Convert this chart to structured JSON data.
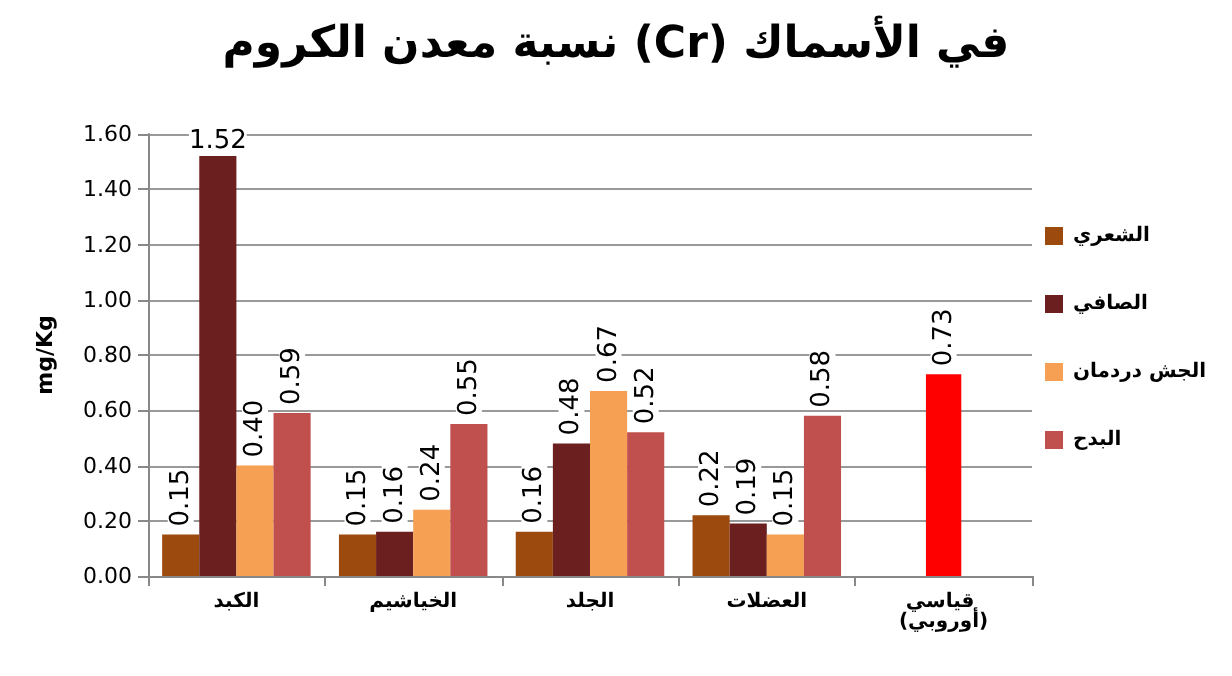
{
  "chart_data": {
    "type": "bar",
    "title": "نسبة معدن الكروم (Cr) في الأسماك",
    "ylabel": "mg/Kg",
    "categories": [
      "الكبد",
      "الخياشيم",
      "الجلد",
      "العضلات",
      "قياسي (أوروبي)"
    ],
    "series": [
      {
        "name": "الشعري",
        "color": "#9c4a0e",
        "values": [
          0.15,
          0.15,
          0.16,
          0.22,
          null
        ],
        "value_labels": [
          "0.15",
          "0.15",
          "0.16",
          "0.22",
          null
        ]
      },
      {
        "name": "الصافي",
        "color": "#6b1f1f",
        "values": [
          1.52,
          0.16,
          0.48,
          0.19,
          null
        ],
        "value_labels": [
          "1.52",
          "0.16",
          "0.48",
          "0.19",
          null
        ]
      },
      {
        "name": "الجش دردمان",
        "color": "#f5a052",
        "values": [
          0.4,
          0.24,
          0.67,
          0.15,
          null
        ],
        "value_labels": [
          "0.40",
          "0.24",
          "0.67",
          "0.15",
          null
        ]
      },
      {
        "name": "البدح",
        "color": "#c0504d",
        "values": [
          0.59,
          0.55,
          0.52,
          0.58,
          null
        ],
        "value_labels": [
          "0.59",
          "0.55",
          "0.52",
          "0.58",
          null
        ]
      },
      {
        "type": "bar",
        "color": "#ff0000",
        "values": [
          null,
          null,
          null,
          null,
          0.73
        ],
        "value_labels": [
          null,
          null,
          null,
          null,
          "0.73"
        ]
      }
    ],
    "ylim": [
      0,
      1.6
    ],
    "yticks": [
      {
        "value": 0,
        "label": "0.00"
      },
      {
        "value": 0.2,
        "label": "0.20"
      },
      {
        "value": 0.4,
        "label": "0.40"
      },
      {
        "value": 0.6,
        "label": "0.60"
      },
      {
        "value": 0.8,
        "label": "0.80"
      },
      {
        "value": 1.0,
        "label": "1.00"
      },
      {
        "value": 1.2,
        "label": "1.20"
      },
      {
        "value": 1.4,
        "label": "1.40"
      },
      {
        "value": 1.6,
        "label": "1.60"
      }
    ],
    "grid": "y",
    "legend": "right"
  }
}
